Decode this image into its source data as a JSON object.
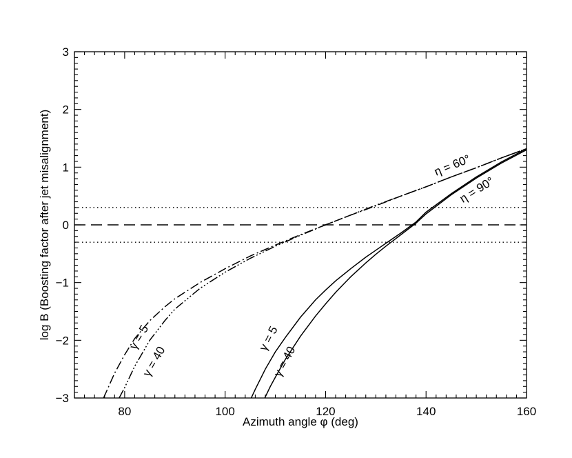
{
  "chart_data": {
    "type": "line",
    "xlabel": "Azimuth angle φ (deg)",
    "ylabel": "log B (Boosting factor after jet misalignment)",
    "xlim": [
      70,
      160
    ],
    "ylim": [
      -3,
      3
    ],
    "x_ticks": [
      80,
      100,
      120,
      140,
      160
    ],
    "y_ticks": [
      -3,
      -2,
      -1,
      0,
      1,
      2,
      3
    ],
    "x_tick_labels": [
      "80",
      "100",
      "120",
      "140",
      "160"
    ],
    "y_tick_labels": [
      "−3",
      "−2",
      "−1",
      "0",
      "1",
      "2",
      "3"
    ],
    "grid": false,
    "legend": "none",
    "reference_lines": [
      {
        "y": 0.301,
        "style": "dotted"
      },
      {
        "y": 0,
        "style": "dashed"
      },
      {
        "y": -0.301,
        "style": "dotted"
      }
    ],
    "series": [
      {
        "style": "dash-dot",
        "color": "#000000",
        "x": [
          75.8,
          78,
          80,
          82,
          85,
          88,
          90,
          95,
          100,
          105,
          110,
          115,
          120,
          125,
          130,
          135,
          140,
          145,
          150,
          155,
          160
        ],
        "y": [
          -3.0,
          -2.57,
          -2.25,
          -1.97,
          -1.66,
          -1.42,
          -1.28,
          -1.0,
          -0.76,
          -0.54,
          -0.35,
          -0.17,
          0.0,
          0.17,
          0.33,
          0.5,
          0.66,
          0.83,
          0.99,
          1.16,
          1.32
        ]
      },
      {
        "style": "dash-triple-dot",
        "color": "#000000",
        "x": [
          78.9,
          80,
          82,
          85,
          88,
          90,
          95,
          100,
          105,
          110,
          115,
          120,
          125,
          130,
          135,
          140,
          145,
          150,
          155,
          160
        ],
        "y": [
          -3.0,
          -2.82,
          -2.45,
          -2.0,
          -1.66,
          -1.46,
          -1.1,
          -0.82,
          -0.58,
          -0.37,
          -0.18,
          0.0,
          0.17,
          0.34,
          0.5,
          0.66,
          0.83,
          0.99,
          1.16,
          1.32
        ]
      },
      {
        "style": "solid",
        "color": "#000000",
        "x": [
          105.2,
          106,
          108,
          110,
          112,
          115,
          118,
          120,
          122,
          125,
          128,
          130,
          132,
          135,
          138,
          140,
          145,
          150,
          155,
          160
        ],
        "y": [
          -3.0,
          -2.85,
          -2.5,
          -2.2,
          -1.95,
          -1.6,
          -1.3,
          -1.13,
          -0.97,
          -0.76,
          -0.56,
          -0.44,
          -0.32,
          -0.14,
          0.05,
          0.22,
          0.54,
          0.83,
          1.09,
          1.32
        ]
      },
      {
        "style": "solid",
        "color": "#000000",
        "x": [
          107.9,
          109,
          110,
          112,
          115,
          118,
          120,
          122,
          125,
          128,
          130,
          132,
          135,
          138,
          140,
          145,
          150,
          155,
          160
        ],
        "y": [
          -3.0,
          -2.8,
          -2.64,
          -2.33,
          -1.93,
          -1.58,
          -1.37,
          -1.17,
          -0.9,
          -0.66,
          -0.51,
          -0.37,
          -0.17,
          0.03,
          0.19,
          0.52,
          0.81,
          1.07,
          1.3
        ]
      }
    ],
    "annotations": [
      {
        "text": "η = 60°",
        "x": 145.5,
        "y": 0.97,
        "rotate": -22
      },
      {
        "text": "η = 90°",
        "x": 150.5,
        "y": 0.55,
        "rotate": -32
      },
      {
        "text": "γ = 5",
        "x": 83.5,
        "y": -1.98,
        "rotate": -60
      },
      {
        "text": "γ = 40",
        "x": 86.5,
        "y": -2.4,
        "rotate": -60
      },
      {
        "text": "γ = 5",
        "x": 109.3,
        "y": -2.0,
        "rotate": -62
      },
      {
        "text": "γ = 40",
        "x": 112.5,
        "y": -2.4,
        "rotate": -62
      }
    ]
  }
}
